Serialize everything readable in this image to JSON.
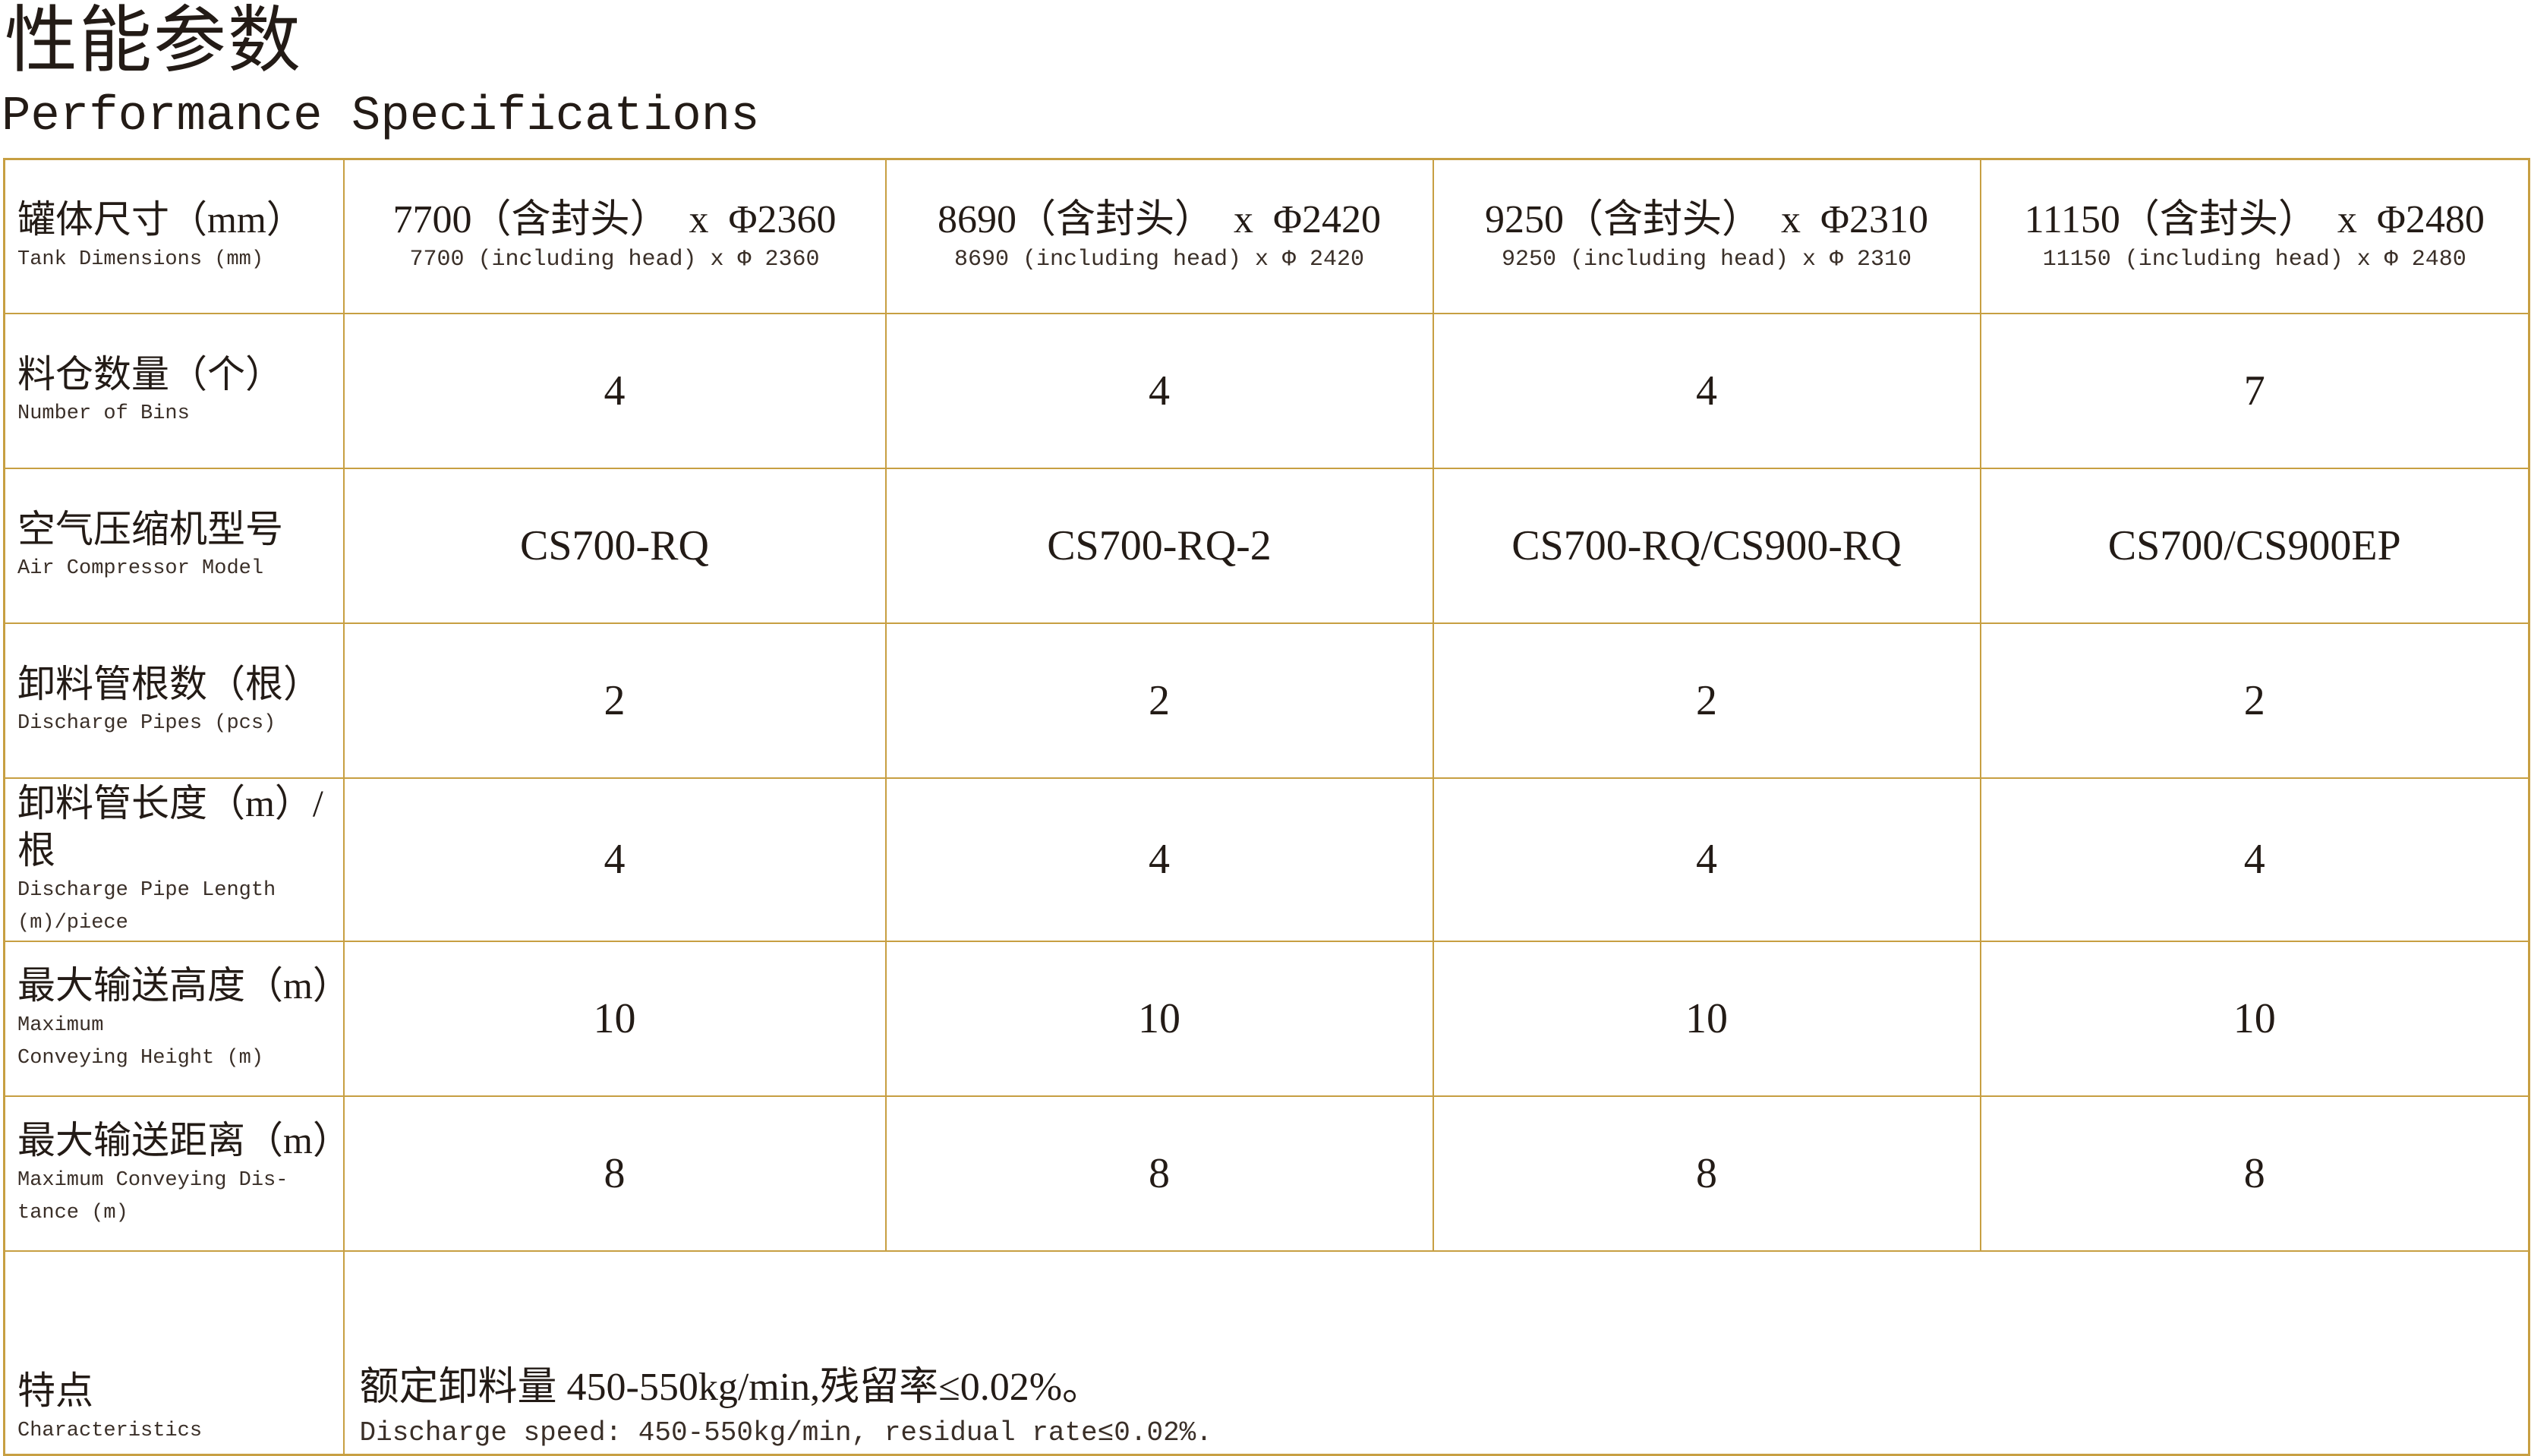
{
  "page": {
    "title_zh": "性能参数",
    "title_en": "Performance Specifications"
  },
  "colors": {
    "table_border": "#c79f42",
    "main_text": "#231b16",
    "sub_text": "#3a2f28"
  },
  "table": {
    "rows": [
      {
        "label_zh": "罐体尺寸（mm）",
        "label_en": "Tank Dimensions (mm)",
        "cells": [
          {
            "zh": "7700（含封头）  x  Φ2360",
            "en": "7700 (including head) x Φ 2360"
          },
          {
            "zh": "8690（含封头）  x  Φ2420",
            "en": "8690 (including head) x Φ 2420"
          },
          {
            "zh": "9250（含封头）  x  Φ2310",
            "en": "9250 (including head) x Φ 2310"
          },
          {
            "zh": "11150（含封头）  x  Φ2480",
            "en": "11150 (including head) x Φ 2480"
          }
        ]
      },
      {
        "label_zh": "料仓数量（个）",
        "label_en": "Number of Bins",
        "values": [
          "4",
          "4",
          "4",
          "7"
        ]
      },
      {
        "label_zh": "空气压缩机型号",
        "label_en": "Air Compressor Model",
        "values": [
          "CS700-RQ",
          "CS700-RQ-2",
          "CS700-RQ/CS900-RQ",
          "CS700/CS900EP"
        ]
      },
      {
        "label_zh": "卸料管根数（根）",
        "label_en": "Discharge Pipes (pcs)",
        "values": [
          "2",
          "2",
          "2",
          "2"
        ]
      },
      {
        "label_zh": "卸料管长度（m）/根",
        "label_en": "Discharge Pipe Length\n(m)/piece",
        "values": [
          "4",
          "4",
          "4",
          "4"
        ]
      },
      {
        "label_zh": "最大输送高度（m）",
        "label_en": "Maximum\nConveying Height (m)",
        "values": [
          "10",
          "10",
          "10",
          "10"
        ]
      },
      {
        "label_zh": "最大输送距离（m）",
        "label_en": "Maximum Conveying Dis-\ntance (m)",
        "values": [
          "8",
          "8",
          "8",
          "8"
        ]
      },
      {
        "label_zh": "特点",
        "label_en": "Characteristics",
        "feature_zh": "额定卸料量 450-550kg/min,残留率≤0.02%。",
        "feature_en": "Discharge speed: 450-550kg/min, residual rate≤0.02%."
      }
    ]
  }
}
